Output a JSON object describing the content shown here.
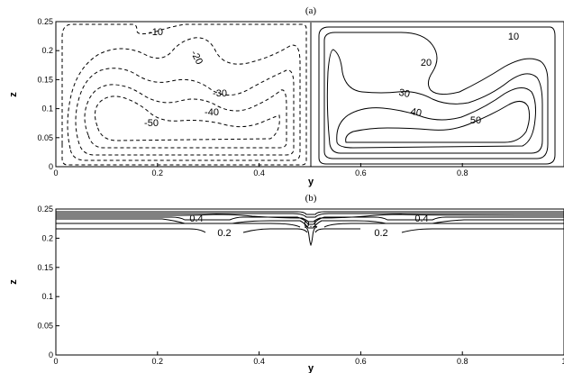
{
  "chart_data": [
    {
      "type": "contour",
      "panel_label": "(a)",
      "xlabel": "y",
      "ylabel": "z",
      "xlim": [
        0,
        1
      ],
      "ylim": [
        0,
        0.25
      ],
      "x_ticks": [
        "0",
        "0.2",
        "0.4",
        "0.6",
        "0.8"
      ],
      "y_ticks": [
        "0",
        "0.05",
        "0.1",
        "0.15",
        "0.2",
        "0.25"
      ],
      "contour_levels_negative": [
        -10,
        -20,
        -30,
        -40,
        -50
      ],
      "contour_levels_positive": [
        10,
        20,
        30,
        40,
        50
      ],
      "contour_labels": [
        "-10",
        "-20",
        "-30",
        "-40",
        "-50",
        "10",
        "20",
        "30",
        "40",
        "50"
      ],
      "negative_line_style": "dashed",
      "positive_line_style": "solid"
    },
    {
      "type": "contour",
      "panel_label": "(b)",
      "xlabel": "y",
      "ylabel": "z",
      "xlim": [
        0,
        1
      ],
      "ylim": [
        0,
        0.25
      ],
      "x_ticks": [
        "0",
        "0.2",
        "0.4",
        "0.6",
        "0.8",
        "1"
      ],
      "y_ticks": [
        "0",
        "0.05",
        "0.1",
        "0.15",
        "0.2",
        "0.25"
      ],
      "contour_labels": [
        "0.4",
        "0.1",
        "0.4",
        "0.2",
        "0.2"
      ],
      "line_style": "solid"
    }
  ]
}
